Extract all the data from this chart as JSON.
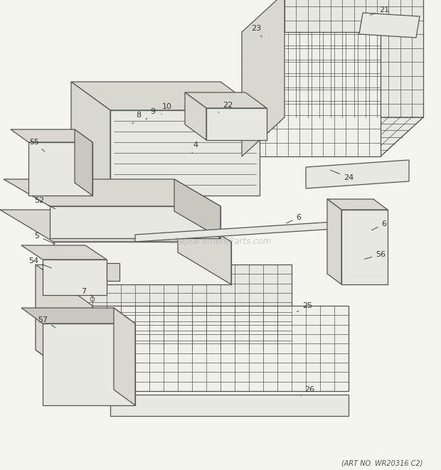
{
  "art_no": "(ART NO. WR20316 C2)",
  "watermark": "eReplacementParts.com",
  "background_color": "#f5f5f0",
  "line_color": "#555555",
  "light_fill": "#e8e8e2",
  "mid_fill": "#d8d8d0",
  "dark_fill": "#c8c8c0",
  "white_fill": "#f0f0ea"
}
